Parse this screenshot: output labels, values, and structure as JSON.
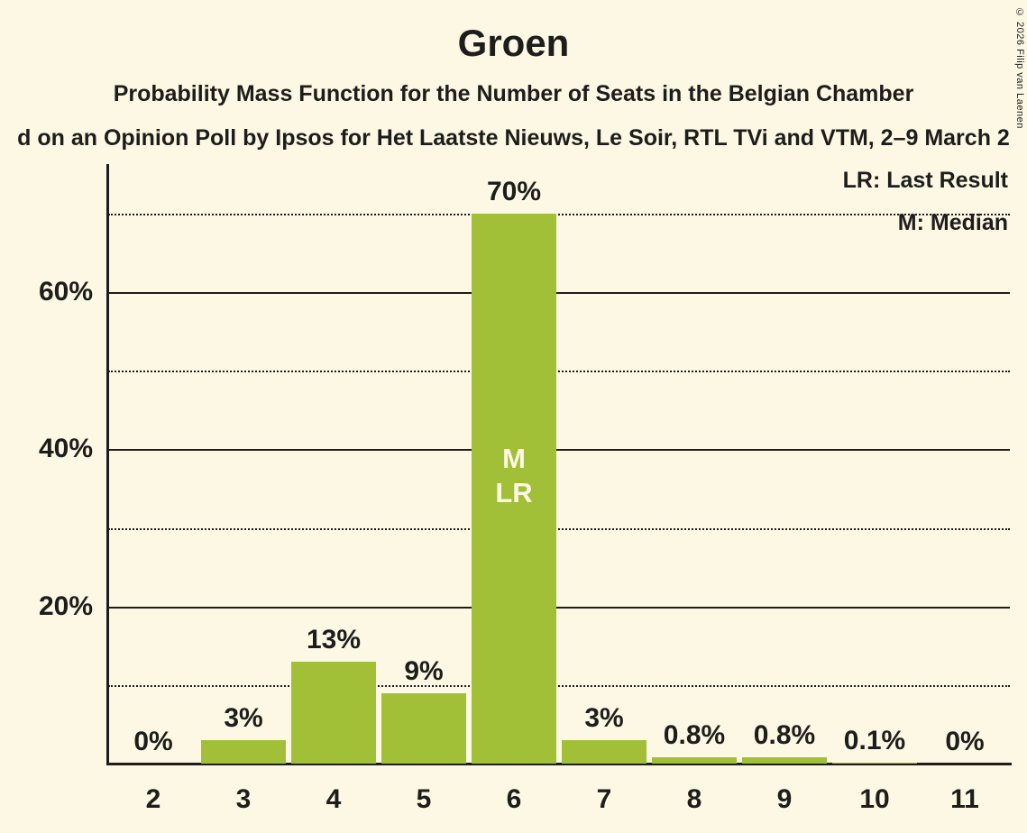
{
  "header": {
    "title": "Groen",
    "subtitle": "Probability Mass Function for the Number of Seats in the Belgian Chamber",
    "source_line": "d on an Opinion Poll by Ipsos for Het Laatste Nieuws, Le Soir, RTL TVi and VTM, 2–9 March 2",
    "copyright": "© 2026 Filip van Laenen"
  },
  "legend": {
    "lr_label": "LR: Last Result",
    "m_label": "M: Median"
  },
  "chart_data": {
    "type": "bar",
    "title": "Groen",
    "xlabel": "",
    "ylabel": "",
    "categories": [
      "2",
      "3",
      "4",
      "5",
      "6",
      "7",
      "8",
      "9",
      "10",
      "11"
    ],
    "values": [
      0,
      3,
      13,
      9,
      70,
      3,
      0.8,
      0.8,
      0.1,
      0
    ],
    "bar_labels": [
      "0%",
      "3%",
      "13%",
      "9%",
      "70%",
      "3%",
      "0.8%",
      "0.8%",
      "0.1%",
      "0%"
    ],
    "ylim": [
      0,
      70
    ],
    "yticks": [
      {
        "value": 20,
        "label": "20%"
      },
      {
        "value": 40,
        "label": "40%"
      },
      {
        "value": 60,
        "label": "60%"
      }
    ],
    "solid_gridlines": [
      20,
      40,
      60
    ],
    "dotted_gridlines": [
      10,
      30,
      50,
      70
    ],
    "grid": true,
    "legend_position": "top-right",
    "median_bar": "6",
    "last_result_bar": "6",
    "bar_annotation_lines": [
      "M",
      "LR"
    ],
    "colors": {
      "bar": "#a1c037",
      "background": "#fcf8e3",
      "text": "#1d1d1b",
      "bar_annotation_text": "#fcf8e3"
    }
  }
}
